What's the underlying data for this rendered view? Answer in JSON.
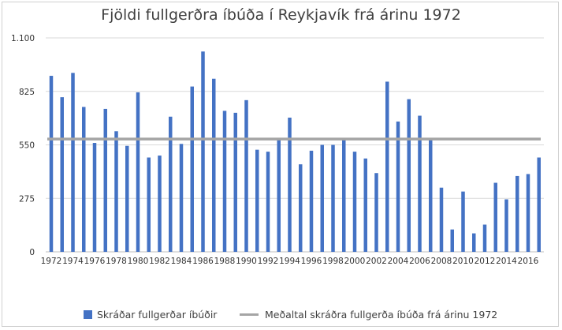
{
  "chart_data": {
    "type": "bar",
    "title": "Fjöldi fullgerðra íbúða í Reykjavík frá árinu 1972",
    "xlabel": "",
    "ylabel": "",
    "ylim": [
      0,
      1100
    ],
    "yticks": [
      0,
      275,
      550,
      825,
      1100
    ],
    "ytick_labels": [
      "0",
      "275",
      "550",
      "825",
      "1.100"
    ],
    "categories": [
      "1972",
      "1973",
      "1974",
      "1975",
      "1976",
      "1977",
      "1978",
      "1979",
      "1980",
      "1981",
      "1982",
      "1983",
      "1984",
      "1985",
      "1986",
      "1987",
      "1988",
      "1989",
      "1990",
      "1991",
      "1992",
      "1993",
      "1994",
      "1995",
      "1996",
      "1997",
      "1998",
      "1999",
      "2000",
      "2001",
      "2002",
      "2003",
      "2004",
      "2005",
      "2006",
      "2007",
      "2008",
      "2009",
      "2010",
      "2011",
      "2012",
      "2013",
      "2014",
      "2015",
      "2016",
      "2017"
    ],
    "xtick_labels": [
      "1972",
      "1974",
      "1976",
      "1978",
      "1980",
      "1982",
      "1984",
      "1986",
      "1988",
      "1990",
      "1992",
      "1994",
      "1996",
      "1998",
      "2000",
      "2002",
      "2004",
      "2006",
      "2008",
      "2010",
      "2012",
      "2014",
      "2016"
    ],
    "series": [
      {
        "name": "Skráðar fullgerðar íbúðir",
        "type": "bar",
        "color": "#4472c4",
        "values": [
          905,
          795,
          920,
          745,
          560,
          735,
          620,
          545,
          820,
          485,
          495,
          695,
          555,
          850,
          1030,
          890,
          725,
          715,
          780,
          525,
          515,
          575,
          690,
          450,
          520,
          550,
          550,
          575,
          515,
          480,
          405,
          875,
          670,
          785,
          700,
          580,
          330,
          115,
          310,
          95,
          140,
          355,
          270,
          390,
          400,
          485
        ]
      },
      {
        "name": "Meðaltal skráðra fullgerða íbúða frá árinu 1972",
        "type": "line",
        "color": "#a5a5a5",
        "value": 580
      }
    ],
    "grid": true,
    "legend_position": "bottom"
  }
}
